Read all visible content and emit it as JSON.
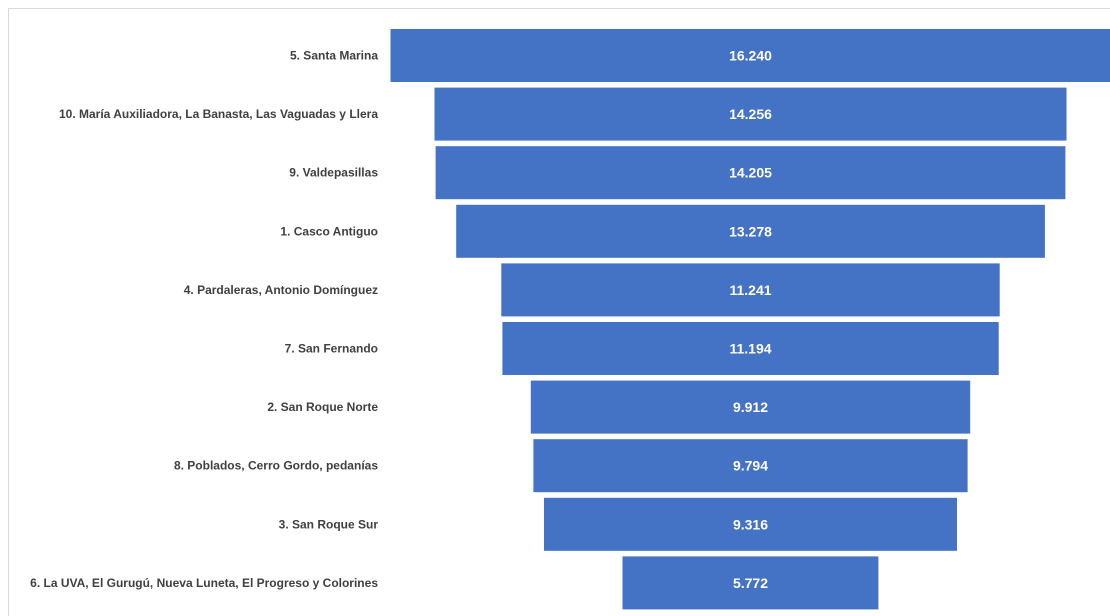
{
  "chart_data": {
    "type": "bar",
    "subtype": "funnel",
    "orientation": "horizontal",
    "categories": [
      "5. Santa Marina",
      "10. María Auxiliadora, La Banasta, Las Vaguadas y Llera",
      "9. Valdepasillas",
      "1. Casco Antiguo",
      "4. Pardaleras, Antonio Domínguez",
      "7. San Fernando",
      "2. San Roque Norte",
      "8. Poblados, Cerro Gordo, pedanías",
      "3. San Roque Sur",
      "6. La UVA, El Gurugú, Nueva Luneta, El Progreso y Colorines"
    ],
    "values": [
      16240,
      14256,
      14205,
      13278,
      11241,
      11194,
      9912,
      9794,
      9316,
      5772
    ],
    "value_labels": [
      "16.240",
      "14.256",
      "14.205",
      "13.278",
      "11.241",
      "11.194",
      "9.912",
      "9.794",
      "9.316",
      "5.772"
    ],
    "title": "",
    "xlabel": "",
    "ylabel": "",
    "grid": false,
    "legend": "none",
    "bar_color": "#4472C4",
    "label_color": "#404040",
    "value_label_color": "#ffffff"
  }
}
